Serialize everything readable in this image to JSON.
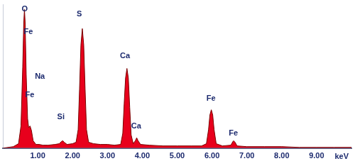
{
  "chart_data": {
    "type": "area",
    "x_label": "keV",
    "x": [
      0,
      0.3,
      0.45,
      0.52,
      0.57,
      0.6,
      0.62,
      0.64,
      0.67,
      0.71,
      0.74,
      0.78,
      0.82,
      0.87,
      0.95,
      1.04,
      1.15,
      1.3,
      1.5,
      1.62,
      1.68,
      1.72,
      1.76,
      1.84,
      2.0,
      2.1,
      2.16,
      2.2,
      2.24,
      2.28,
      2.32,
      2.36,
      2.4,
      2.46,
      2.6,
      2.8,
      3.0,
      3.2,
      3.38,
      3.44,
      3.48,
      3.52,
      3.56,
      3.6,
      3.64,
      3.68,
      3.74,
      3.8,
      3.84,
      3.88,
      3.95,
      4.2,
      4.6,
      5.0,
      5.4,
      5.7,
      5.84,
      5.9,
      5.94,
      5.98,
      6.02,
      6.06,
      6.12,
      6.3,
      6.54,
      6.6,
      6.62,
      6.66,
      6.72,
      7.0,
      7.5,
      8.0,
      8.5,
      9.0,
      9.5,
      10
    ],
    "values": [
      0,
      2,
      6,
      30,
      110,
      170,
      188,
      170,
      100,
      40,
      28,
      30,
      24,
      10,
      5,
      5,
      4,
      4,
      5,
      6,
      9,
      10,
      8,
      5,
      6,
      8,
      25,
      80,
      140,
      162,
      140,
      80,
      25,
      8,
      6,
      5,
      5,
      4,
      5,
      20,
      60,
      95,
      108,
      95,
      55,
      18,
      6,
      10,
      14,
      10,
      5,
      4,
      3,
      3,
      3,
      3,
      6,
      25,
      45,
      52,
      45,
      25,
      6,
      3,
      4,
      9,
      10,
      8,
      3,
      2,
      2,
      2,
      1,
      1,
      1,
      1
    ],
    "color": "#e8001c",
    "xlim": [
      0,
      10
    ],
    "ylim": [
      0,
      195
    ],
    "xticks": [
      {
        "value": 1,
        "label": "1.00"
      },
      {
        "value": 2,
        "label": "2.00"
      },
      {
        "value": 3,
        "label": "3.00"
      },
      {
        "value": 4,
        "label": "4.00"
      },
      {
        "value": 5,
        "label": "5.00"
      },
      {
        "value": 6,
        "label": "6.00"
      },
      {
        "value": 7,
        "label": "7.00"
      },
      {
        "value": 8,
        "label": "8.00"
      },
      {
        "value": 9,
        "label": "9.00"
      }
    ],
    "grid": false,
    "tick_labels": "x",
    "annotations": [
      {
        "text": "O",
        "x": 0.54,
        "y": 188
      },
      {
        "text": "Fe",
        "x": 0.6,
        "y": 158
      },
      {
        "text": "Na",
        "x": 0.92,
        "y": 97
      },
      {
        "text": "Fe",
        "x": 0.64,
        "y": 72
      },
      {
        "text": "Si",
        "x": 1.56,
        "y": 42
      },
      {
        "text": "S",
        "x": 2.12,
        "y": 182
      },
      {
        "text": "Ca",
        "x": 3.36,
        "y": 125
      },
      {
        "text": "Ca",
        "x": 3.68,
        "y": 30
      },
      {
        "text": "Fe",
        "x": 5.84,
        "y": 67
      },
      {
        "text": "Fe",
        "x": 6.48,
        "y": 20
      }
    ]
  }
}
